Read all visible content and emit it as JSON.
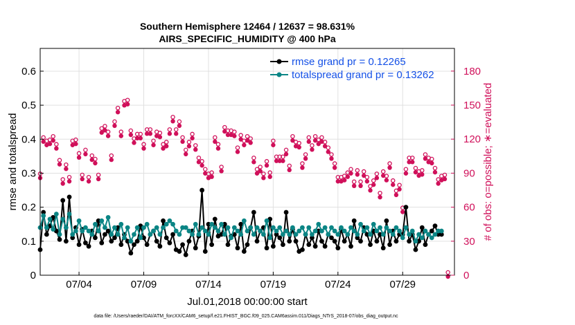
{
  "page": {
    "title_line1": "Southern Hemisphere 12464 / 12637 = 98.631%",
    "title_line2": "AIRS_SPECIFIC_HUMIDITY @ 400 hPa",
    "footer": "data file: /Users/raeder/DAI/ATM_forcXX/CAM6_setup/f.e21.FHIST_BGC.f09_025.CAM6assim.011/Diags_NTrS_2018-07/obs_diag_output.nc"
  },
  "colors": {
    "rmse": "#000000",
    "spread": "#0b8585",
    "obs": "#d0105a",
    "legend_text": "#1450e6",
    "grid": "#e0e0e0"
  },
  "chart_data": {
    "type": "line",
    "title": "Southern Hemisphere 12464 / 12637 = 98.631%",
    "subtitle": "AIRS_SPECIFIC_HUMIDITY @ 400 hPa",
    "xlabel": "Jul.01,2018 00:00:00 start",
    "ylabel": "rmse and totalspread",
    "y2label": "# of obs: o=possible; ∗=evaluated",
    "xlim": [
      1,
      33
    ],
    "ylim": [
      0,
      0.667
    ],
    "y2lim": [
      0,
      200
    ],
    "grid": true,
    "legend_position": "top-right",
    "x_tick_values": [
      4,
      9,
      14,
      19,
      24,
      29
    ],
    "x_tick_labels": [
      "07/04",
      "07/09",
      "07/14",
      "07/19",
      "07/24",
      "07/29"
    ],
    "y_ticks": [
      0,
      0.1,
      0.2,
      0.3,
      0.4,
      0.5,
      0.6
    ],
    "y_tick_labels": [
      "0",
      "0.1",
      "0.2",
      "0.3",
      "0.4",
      "0.5",
      "0.6"
    ],
    "y2_ticks": [
      0,
      30,
      60,
      90,
      120,
      150,
      180
    ],
    "y2_tick_labels": [
      "0",
      "30",
      "60",
      "90",
      "120",
      "150",
      "180"
    ],
    "series": [
      {
        "name": "rmse grand pr = 0.12265",
        "x_start": 1.0,
        "x_step": 0.25,
        "values": [
          0.075,
          0.185,
          0.12,
          0.145,
          0.17,
          0.13,
          0.105,
          0.22,
          0.1,
          0.23,
          0.11,
          0.14,
          0.09,
          0.135,
          0.095,
          0.085,
          0.13,
          0.11,
          0.16,
          0.095,
          0.12,
          0.13,
          0.1,
          0.11,
          0.14,
          0.09,
          0.12,
          0.1,
          0.065,
          0.09,
          0.1,
          0.145,
          0.11,
          0.09,
          0.12,
          0.13,
          0.1,
          0.085,
          0.16,
          0.11,
          0.095,
          0.12,
          0.075,
          0.07,
          0.09,
          0.06,
          0.1,
          0.13,
          0.08,
          0.115,
          0.25,
          0.07,
          0.15,
          0.09,
          0.165,
          0.115,
          0.12,
          0.15,
          0.09,
          0.115,
          0.12,
          0.08,
          0.15,
          0.07,
          0.09,
          0.14,
          0.185,
          0.1,
          0.13,
          0.14,
          0.08,
          0.165,
          0.085,
          0.12,
          0.11,
          0.09,
          0.185,
          0.1,
          0.135,
          0.1,
          0.07,
          0.075,
          0.12,
          0.09,
          0.11,
          0.085,
          0.13,
          0.1,
          0.085,
          0.12,
          0.11,
          0.1,
          0.08,
          0.135,
          0.1,
          0.12,
          0.085,
          0.16,
          0.11,
          0.1,
          0.14,
          0.12,
          0.09,
          0.13,
          0.1,
          0.12,
          0.08,
          0.16,
          0.09,
          0.13,
          0.1,
          0.12,
          0.12,
          0.2,
          0.1,
          0.12,
          0.075,
          0.1,
          0.14,
          0.09,
          0.12,
          0.13,
          0.145,
          0.12,
          0.12
        ]
      },
      {
        "name": "totalspread grand pr = 0.13262",
        "x_start": 1.0,
        "x_step": 0.25,
        "values": [
          0.14,
          0.175,
          0.14,
          0.165,
          0.135,
          0.18,
          0.12,
          0.165,
          0.14,
          0.18,
          0.12,
          0.13,
          0.16,
          0.13,
          0.14,
          0.13,
          0.12,
          0.15,
          0.13,
          0.16,
          0.14,
          0.17,
          0.12,
          0.14,
          0.12,
          0.15,
          0.11,
          0.14,
          0.1,
          0.12,
          0.14,
          0.11,
          0.14,
          0.15,
          0.12,
          0.13,
          0.14,
          0.12,
          0.14,
          0.15,
          0.16,
          0.15,
          0.13,
          0.12,
          0.14,
          0.14,
          0.13,
          0.12,
          0.15,
          0.12,
          0.14,
          0.13,
          0.12,
          0.15,
          0.14,
          0.13,
          0.15,
          0.12,
          0.14,
          0.11,
          0.14,
          0.13,
          0.12,
          0.16,
          0.13,
          0.14,
          0.12,
          0.14,
          0.13,
          0.12,
          0.16,
          0.11,
          0.14,
          0.13,
          0.14,
          0.12,
          0.13,
          0.12,
          0.14,
          0.12,
          0.13,
          0.14,
          0.12,
          0.14,
          0.12,
          0.13,
          0.15,
          0.13,
          0.14,
          0.12,
          0.14,
          0.13,
          0.12,
          0.14,
          0.13,
          0.12,
          0.14,
          0.13,
          0.12,
          0.15,
          0.13,
          0.14,
          0.12,
          0.15,
          0.13,
          0.14,
          0.12,
          0.14,
          0.13,
          0.12,
          0.14,
          0.13,
          0.11,
          0.14,
          0.12,
          0.13,
          0.1,
          0.12,
          0.11,
          0.13,
          0.12,
          0.11,
          0.12,
          0.13,
          0.13
        ]
      },
      {
        "name": "# of obs possible / evaluated",
        "axis": "right",
        "x_start": 1.0,
        "x_step": 0.25,
        "values": [
          87,
          119,
          116,
          117,
          120,
          113,
          99,
          82,
          95,
          84,
          116,
          117,
          105,
          86,
          108,
          84,
          103,
          100,
          86,
          127,
          129,
          124,
          103,
          133,
          145,
          124,
          151,
          152,
          125,
          118,
          122,
          122,
          113,
          126,
          126,
          116,
          124,
          123,
          113,
          115,
          126,
          137,
          126,
          133,
          119,
          108,
          115,
          122,
          112,
          101,
          98,
          91,
          87,
          88,
          119,
          113,
          93,
          128,
          125,
          125,
          124,
          110,
          121,
          116,
          120,
          118,
          101,
          91,
          93,
          87,
          98,
          88,
          116,
          102,
          102,
          102,
          108,
          94,
          120,
          115,
          114,
          96,
          104,
          119,
          112,
          120,
          117,
          119,
          115,
          110,
          104,
          96,
          84,
          84,
          85,
          88,
          91,
          80,
          90,
          80,
          89,
          84,
          76,
          81,
          87,
          70,
          89,
          85,
          96,
          81,
          72,
          77,
          57,
          91,
          101,
          101,
          92,
          89,
          90,
          104,
          101,
          100,
          92,
          82,
          85,
          86,
          0
        ]
      }
    ]
  }
}
